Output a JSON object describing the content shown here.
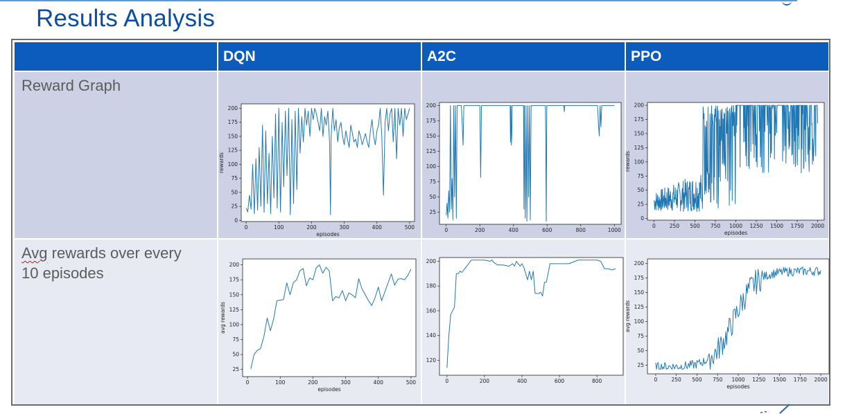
{
  "page": {
    "title": "Results Analysis"
  },
  "table": {
    "headers": [
      "",
      "DQN",
      "A2C",
      "PPO"
    ],
    "rows": [
      {
        "label": "Reward Graph"
      },
      {
        "label_part1": "Avg",
        "label_part2": " rewards over every",
        "label_line2": "10 episodes"
      }
    ]
  },
  "colors": {
    "header": "#0b5cbd",
    "row1": "#cdd1e6",
    "row2": "#e7e9f3",
    "title": "#0b4ea2",
    "line": "#1f77b4"
  },
  "chart_data": [
    {
      "id": "dqn-reward",
      "type": "line",
      "xlabel": "episodes",
      "ylabel": "rewards",
      "xlim": [
        -15,
        515
      ],
      "ylim": [
        -2,
        208
      ],
      "xticks": [
        0,
        100,
        200,
        300,
        400,
        500
      ],
      "yticks": [
        0,
        25,
        50,
        75,
        100,
        125,
        150,
        175,
        200
      ],
      "series": [
        {
          "x": [
            0,
            5,
            10,
            15,
            20,
            25,
            30,
            35,
            40,
            45,
            50,
            55,
            60,
            65,
            70,
            75,
            80,
            85,
            90,
            95,
            100,
            105,
            110,
            115,
            120,
            125,
            130,
            135,
            140,
            145,
            150,
            155,
            160,
            165,
            170,
            175,
            180,
            185,
            190,
            195,
            200,
            205,
            210,
            215,
            220,
            225,
            230,
            235,
            240,
            245,
            250,
            255,
            258,
            260,
            265,
            270,
            275,
            280,
            285,
            290,
            295,
            300,
            305,
            310,
            315,
            320,
            325,
            330,
            335,
            340,
            345,
            350,
            355,
            360,
            365,
            370,
            375,
            380,
            385,
            390,
            395,
            400,
            405,
            410,
            415,
            420,
            425,
            430,
            435,
            440,
            445,
            450,
            455,
            460,
            465,
            470,
            475,
            480,
            485,
            490,
            495,
            500
          ],
          "y": [
            22,
            15,
            45,
            20,
            100,
            12,
            110,
            18,
            130,
            25,
            170,
            14,
            160,
            30,
            120,
            12,
            150,
            40,
            190,
            22,
            200,
            15,
            175,
            60,
            195,
            80,
            200,
            10,
            180,
            30,
            195,
            55,
            200,
            120,
            185,
            140,
            200,
            170,
            195,
            150,
            200,
            180,
            200,
            190,
            175,
            160,
            200,
            150,
            185,
            170,
            195,
            140,
            10,
            150,
            200,
            160,
            180,
            140,
            165,
            175,
            150,
            135,
            160,
            145,
            130,
            170,
            155,
            140,
            145,
            130,
            160,
            150,
            135,
            145,
            155,
            140,
            130,
            160,
            180,
            150,
            135,
            160,
            170,
            200,
            150,
            45,
            175,
            200,
            160,
            190,
            200,
            140,
            200,
            110,
            200,
            170,
            200,
            150,
            200,
            180,
            190,
            200
          ]
        }
      ]
    },
    {
      "id": "a2c-reward",
      "type": "line",
      "xlabel": "",
      "ylabel": "",
      "xlim": [
        -40,
        1040
      ],
      "ylim": [
        5,
        205
      ],
      "xticks": [
        0,
        200,
        400,
        600,
        800,
        1000
      ],
      "yticks": [
        25,
        50,
        75,
        100,
        125,
        150,
        175,
        200
      ],
      "series": [
        {
          "x": [
            0,
            5,
            10,
            15,
            20,
            25,
            30,
            35,
            40,
            45,
            50,
            55,
            60,
            65,
            70,
            75,
            80,
            85,
            90,
            95,
            100,
            105,
            110,
            200,
            205,
            210,
            380,
            382,
            385,
            388,
            390,
            392,
            395,
            460,
            462,
            465,
            470,
            475,
            480,
            485,
            490,
            495,
            500,
            505,
            510,
            515,
            520,
            525,
            590,
            592,
            595,
            598,
            600,
            700,
            702,
            705,
            900,
            905,
            910,
            915,
            920,
            925,
            930,
            1000
          ],
          "y": [
            20,
            40,
            15,
            60,
            25,
            200,
            30,
            80,
            12,
            200,
            50,
            200,
            15,
            200,
            200,
            200,
            200,
            200,
            200,
            170,
            135,
            200,
            200,
            200,
            82,
            200,
            200,
            140,
            200,
            135,
            150,
            200,
            200,
            200,
            30,
            200,
            15,
            200,
            10,
            200,
            50,
            200,
            12,
            200,
            200,
            200,
            200,
            200,
            200,
            150,
            10,
            200,
            200,
            200,
            190,
            200,
            200,
            170,
            150,
            200,
            165,
            200,
            200,
            200
          ]
        }
      ]
    },
    {
      "id": "ppo-reward",
      "type": "line",
      "xlabel": "episodes",
      "ylabel": "rewards",
      "xlim": [
        -80,
        2080
      ],
      "ylim": [
        -3,
        205
      ],
      "xticks": [
        0,
        250,
        500,
        750,
        1000,
        1250,
        1500,
        1750,
        2000
      ],
      "yticks": [
        0,
        25,
        50,
        75,
        100,
        125,
        150,
        175,
        200
      ]
    },
    {
      "id": "dqn-avg",
      "type": "line",
      "xlabel": "episodes",
      "ylabel": "avg rewards",
      "xlim": [
        -15,
        515
      ],
      "ylim": [
        13,
        210
      ],
      "xticks": [
        0,
        100,
        200,
        300,
        400,
        500
      ],
      "yticks": [
        25,
        50,
        75,
        100,
        125,
        150,
        175,
        200
      ],
      "series": [
        {
          "x": [
            10,
            20,
            30,
            40,
            50,
            60,
            70,
            80,
            90,
            100,
            110,
            120,
            130,
            140,
            150,
            160,
            170,
            180,
            190,
            200,
            210,
            220,
            230,
            240,
            250,
            260,
            270,
            280,
            290,
            300,
            310,
            320,
            330,
            340,
            350,
            360,
            370,
            380,
            390,
            400,
            410,
            420,
            430,
            440,
            450,
            460,
            470,
            480,
            490,
            500
          ],
          "y": [
            26,
            50,
            57,
            60,
            80,
            111,
            90,
            110,
            140,
            141,
            142,
            170,
            150,
            170,
            175,
            190,
            194,
            165,
            178,
            175,
            195,
            200,
            186,
            196,
            190,
            140,
            147,
            145,
            157,
            140,
            153,
            150,
            145,
            177,
            160,
            150,
            140,
            132,
            145,
            163,
            140,
            155,
            170,
            185,
            166,
            176,
            177,
            175,
            182,
            193
          ]
        }
      ]
    },
    {
      "id": "a2c-avg",
      "type": "line",
      "xlabel": "",
      "ylabel": "",
      "xlim": [
        -40,
        940
      ],
      "ylim": [
        108,
        203
      ],
      "xticks": [
        0,
        200,
        400,
        600,
        800
      ],
      "yticks": [
        120,
        140,
        160,
        180,
        200
      ],
      "series": [
        {
          "x": [
            0,
            10,
            20,
            30,
            40,
            50,
            60,
            70,
            80,
            100,
            130,
            200,
            230,
            240,
            250,
            270,
            300,
            330,
            350,
            360,
            370,
            380,
            390,
            400,
            410,
            420,
            430,
            440,
            450,
            460,
            470,
            480,
            490,
            500,
            510,
            520,
            530,
            550,
            600,
            650,
            700,
            750,
            800,
            820,
            840,
            860,
            880,
            900
          ],
          "y": [
            114,
            140,
            157,
            160,
            163,
            190,
            190,
            192,
            191,
            195,
            201,
            201,
            200,
            201,
            199,
            197,
            197,
            196,
            198,
            196,
            200,
            198,
            196,
            198,
            195,
            190,
            185,
            192,
            185,
            192,
            174,
            174,
            174,
            175,
            172,
            183,
            183,
            198,
            198,
            198,
            201,
            201,
            201,
            200,
            194,
            194,
            193,
            194
          ]
        }
      ]
    },
    {
      "id": "ppo-avg",
      "type": "line",
      "xlabel": "episodes",
      "ylabel": "avg rewards",
      "xlim": [
        -100,
        2100
      ],
      "ylim": [
        10,
        208
      ],
      "xticks": [
        0,
        250,
        500,
        750,
        1000,
        1250,
        1500,
        1750,
        2000
      ],
      "yticks": [
        25,
        50,
        75,
        100,
        125,
        150,
        175,
        200
      ]
    }
  ]
}
